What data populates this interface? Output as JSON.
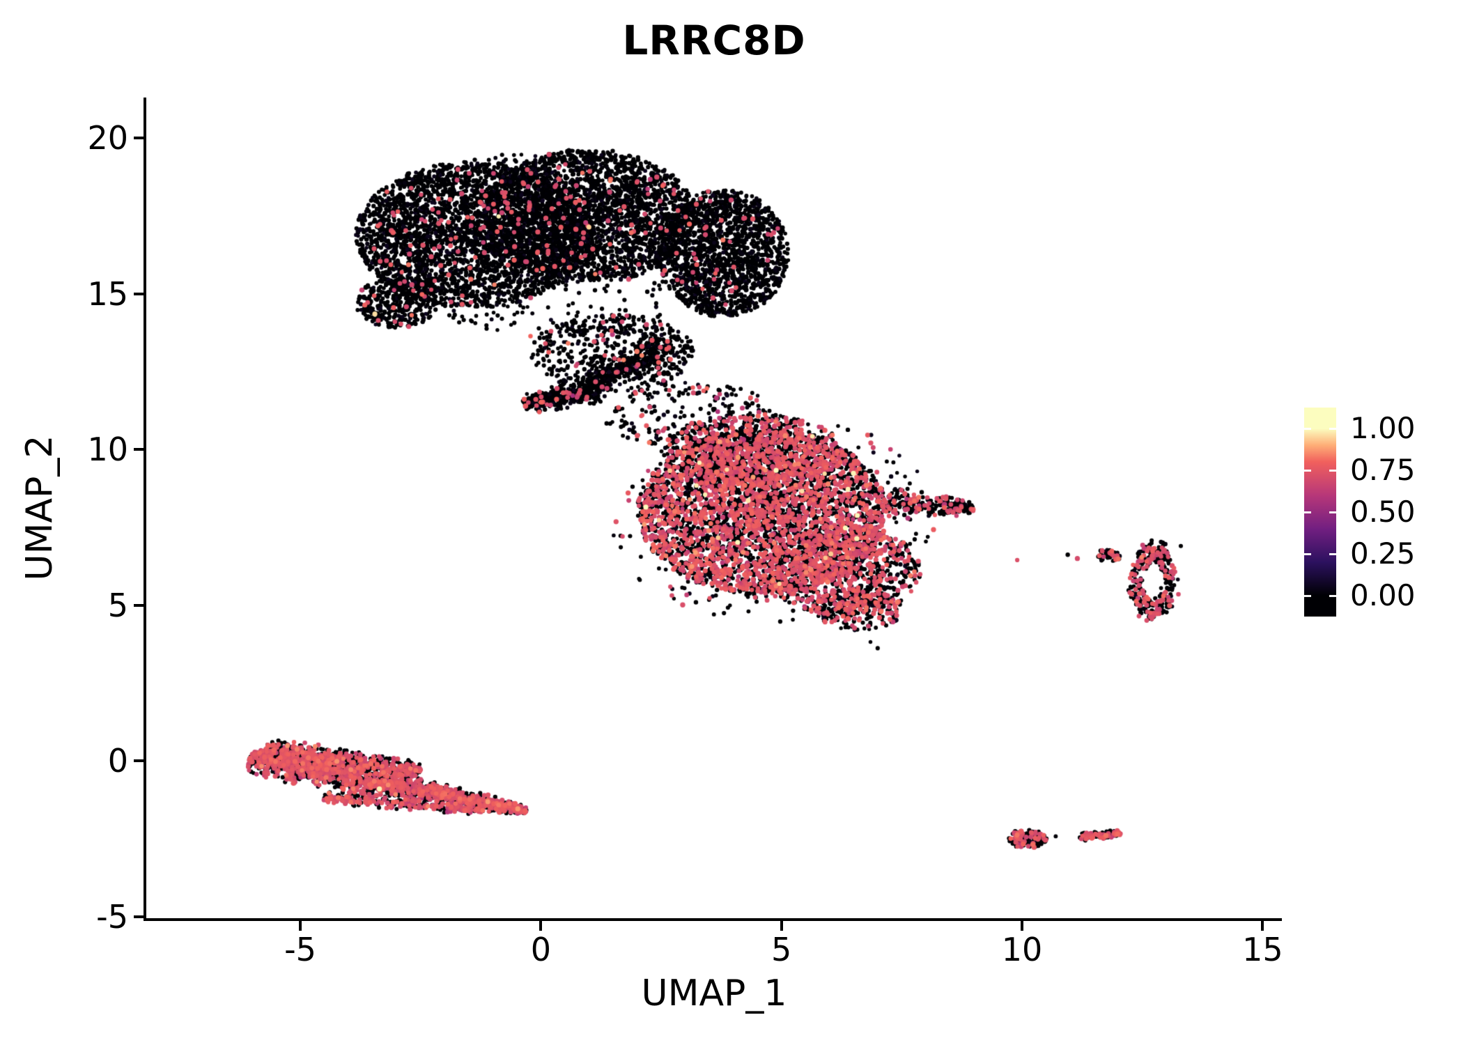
{
  "title": "LRRC8D",
  "colors": {
    "background": "#ffffff",
    "axis": "#000000",
    "text": "#000000",
    "zero_expression_point": "#000004",
    "mid_expression_point": "#d9486c"
  },
  "chart_data": {
    "type": "scatter",
    "title": "LRRC8D",
    "xlabel": "UMAP_1",
    "ylabel": "UMAP_2",
    "xlim": [
      -8.2,
      15.4
    ],
    "ylim": [
      -5.05,
      21.3
    ],
    "grid": false,
    "legend_position": "right",
    "x_ticks": [
      {
        "v": -5,
        "label": "-5"
      },
      {
        "v": 0,
        "label": "0"
      },
      {
        "v": 5,
        "label": "5"
      },
      {
        "v": 10,
        "label": "10"
      },
      {
        "v": 15,
        "label": "15"
      }
    ],
    "y_ticks": [
      {
        "v": -5,
        "label": "-5"
      },
      {
        "v": 0,
        "label": "0"
      },
      {
        "v": 5,
        "label": "5"
      },
      {
        "v": 10,
        "label": "10"
      },
      {
        "v": 15,
        "label": "15"
      },
      {
        "v": 20,
        "label": "20"
      }
    ],
    "colorbar": {
      "title": "",
      "labels": [
        {
          "v": 1.0,
          "label": "1.00"
        },
        {
          "v": 0.75,
          "label": "0.75"
        },
        {
          "v": 0.5,
          "label": "0.50"
        },
        {
          "v": 0.25,
          "label": "0.25"
        },
        {
          "v": 0.0,
          "label": "0.00"
        }
      ],
      "stops": [
        {
          "v": 0.0,
          "color": "#000004"
        },
        {
          "v": 0.2,
          "color": "#2c115f"
        },
        {
          "v": 0.4,
          "color": "#721f81"
        },
        {
          "v": 0.6,
          "color": "#b73779"
        },
        {
          "v": 0.8,
          "color": "#f1605d"
        },
        {
          "v": 0.9,
          "color": "#feae77"
        },
        {
          "v": 1.0,
          "color": "#fcfdbf"
        }
      ]
    },
    "seed": 20240601,
    "clusters": [
      {
        "name": "upper-left-lobe",
        "kind": "blob",
        "c": [
          -1.4,
          16.9
        ],
        "rx": 2.45,
        "ry": 2.35,
        "n": 3200,
        "pos": 0.03
      },
      {
        "name": "upper-mid-lobe",
        "kind": "blob",
        "c": [
          1.0,
          17.5
        ],
        "rx": 2.2,
        "ry": 2.15,
        "n": 2600,
        "pos": 0.03,
        "high": 0.0008
      },
      {
        "name": "upper-right-lobe",
        "kind": "blob",
        "c": [
          3.8,
          16.3
        ],
        "rx": 1.35,
        "ry": 2.05,
        "n": 1700,
        "pos": 0.025
      },
      {
        "name": "upper-left-protrusion",
        "kind": "blob",
        "c": [
          -3.0,
          14.7
        ],
        "rx": 0.85,
        "ry": 0.8,
        "n": 350,
        "pos": 0.04
      },
      {
        "name": "upper-halo",
        "kind": "blob",
        "c": [
          0.2,
          16.6
        ],
        "rx": 3.7,
        "ry": 3.0,
        "n": 420,
        "pos": 0.03,
        "expo": 0.32
      },
      {
        "name": "upper-tail-scatter",
        "kind": "blob",
        "c": [
          1.5,
          13.1
        ],
        "rx": 1.7,
        "ry": 1.25,
        "n": 520,
        "pos": 0.05,
        "expo": 0.45
      },
      {
        "name": "beak-streak",
        "kind": "stroke",
        "p0": [
          -0.35,
          11.45
        ],
        "p1": [
          1.3,
          11.95
        ],
        "w0": 0.32,
        "w1": 0.42,
        "n": 420,
        "pos": 0.06
      },
      {
        "name": "connector-streak",
        "kind": "stroke",
        "p0": [
          1.0,
          12.1
        ],
        "p1": [
          2.7,
          13.4
        ],
        "w0": 0.38,
        "w1": 0.5,
        "n": 380,
        "pos": 0.05
      },
      {
        "name": "center-main",
        "kind": "blob",
        "c": [
          4.6,
          8.0
        ],
        "rx": 2.6,
        "ry": 2.65,
        "n": 4100,
        "pos": 0.42,
        "high": 0.004
      },
      {
        "name": "center-top-dome",
        "kind": "blob",
        "c": [
          4.4,
          9.9
        ],
        "rx": 1.9,
        "ry": 1.25,
        "n": 750,
        "pos": 0.42,
        "high": 0.003
      },
      {
        "name": "center-lower-right",
        "kind": "blob",
        "c": [
          6.3,
          6.1
        ],
        "rx": 1.6,
        "ry": 1.45,
        "n": 850,
        "pos": 0.4,
        "high": 0.003
      },
      {
        "name": "center-bottom-tip",
        "kind": "blob",
        "c": [
          6.6,
          4.9
        ],
        "rx": 0.95,
        "ry": 0.7,
        "n": 230,
        "pos": 0.35
      },
      {
        "name": "center-right-arm",
        "kind": "stroke",
        "p0": [
          7.2,
          8.3
        ],
        "p1": [
          9.0,
          8.1
        ],
        "w0": 0.55,
        "w1": 0.2,
        "n": 260,
        "pos": 0.25
      },
      {
        "name": "center-top-scatter",
        "kind": "blob",
        "c": [
          3.1,
          11.1
        ],
        "rx": 1.8,
        "ry": 1.05,
        "n": 230,
        "pos": 0.12,
        "expo": 0.4
      },
      {
        "name": "center-halo",
        "kind": "blob",
        "c": [
          4.8,
          7.8
        ],
        "rx": 3.4,
        "ry": 3.4,
        "n": 260,
        "pos": 0.3,
        "expo": 0.3
      },
      {
        "name": "right-ring",
        "kind": "ring",
        "c": [
          12.72,
          5.78
        ],
        "rx": 0.48,
        "ry": 1.27,
        "inner": 0.42,
        "n": 330,
        "pos": 0.32
      },
      {
        "name": "right-ring-topleft-clump",
        "kind": "blob",
        "c": [
          11.8,
          6.6
        ],
        "rx": 0.28,
        "ry": 0.2,
        "n": 45,
        "pos": 0.3
      },
      {
        "name": "lower-left-band-main",
        "kind": "stroke",
        "p0": [
          -6.05,
          0.1
        ],
        "p1": [
          -0.3,
          -1.6
        ],
        "w0": 0.6,
        "w1": 0.2,
        "n": 1650,
        "pos": 0.5,
        "high": 0.002
      },
      {
        "name": "lower-left-band-upper",
        "kind": "stroke",
        "p0": [
          -5.75,
          0.35
        ],
        "p1": [
          -2.5,
          -0.3
        ],
        "w0": 0.42,
        "w1": 0.3,
        "n": 650,
        "pos": 0.45
      },
      {
        "name": "lower-left-band-lower",
        "kind": "stroke",
        "p0": [
          -4.5,
          -1.15
        ],
        "p1": [
          -1.2,
          -1.6
        ],
        "w0": 0.22,
        "w1": 0.15,
        "n": 280,
        "pos": 0.55
      },
      {
        "name": "small-bottom-left",
        "kind": "blob",
        "c": [
          10.1,
          -2.5
        ],
        "rx": 0.42,
        "ry": 0.3,
        "n": 130,
        "pos": 0.35
      },
      {
        "name": "small-bottom-right",
        "kind": "stroke",
        "p0": [
          11.2,
          -2.45
        ],
        "p1": [
          12.05,
          -2.32
        ],
        "w0": 0.13,
        "w1": 0.11,
        "n": 110,
        "pos": 0.5
      }
    ],
    "outliers": [
      [
        7.0,
        3.62,
        0
      ],
      [
        6.85,
        3.82,
        0
      ],
      [
        10.7,
        -2.42,
        0
      ],
      [
        11.15,
        6.5,
        0.7
      ],
      [
        10.95,
        6.62,
        0
      ],
      [
        9.9,
        6.45,
        0.72
      ],
      [
        -3.45,
        14.35,
        0.96
      ],
      [
        13.25,
        5.35,
        0.7
      ],
      [
        13.3,
        6.9,
        0
      ]
    ]
  }
}
